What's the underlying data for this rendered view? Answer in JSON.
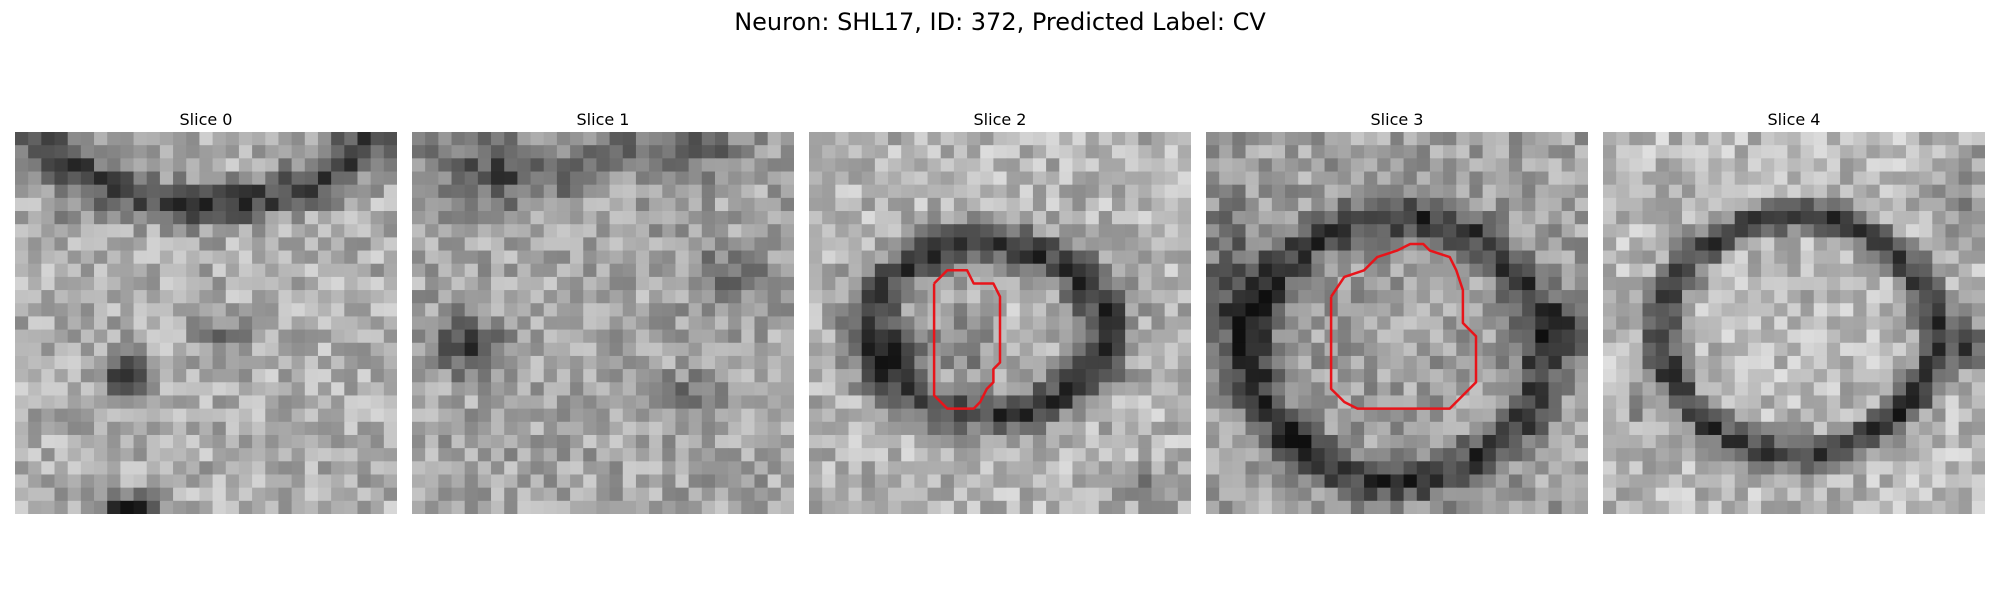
{
  "figure": {
    "title": "Neuron: SHL17, ID: 372, Predicted Label: CV"
  },
  "panels": [
    {
      "label": "Slice 0",
      "has_outline": false
    },
    {
      "label": "Slice 1",
      "has_outline": false
    },
    {
      "label": "Slice 2",
      "has_outline": true
    },
    {
      "label": "Slice 3",
      "has_outline": true
    },
    {
      "label": "Slice 4",
      "has_outline": false
    }
  ],
  "colors": {
    "outline": "#e8141a",
    "background": "#ffffff"
  }
}
